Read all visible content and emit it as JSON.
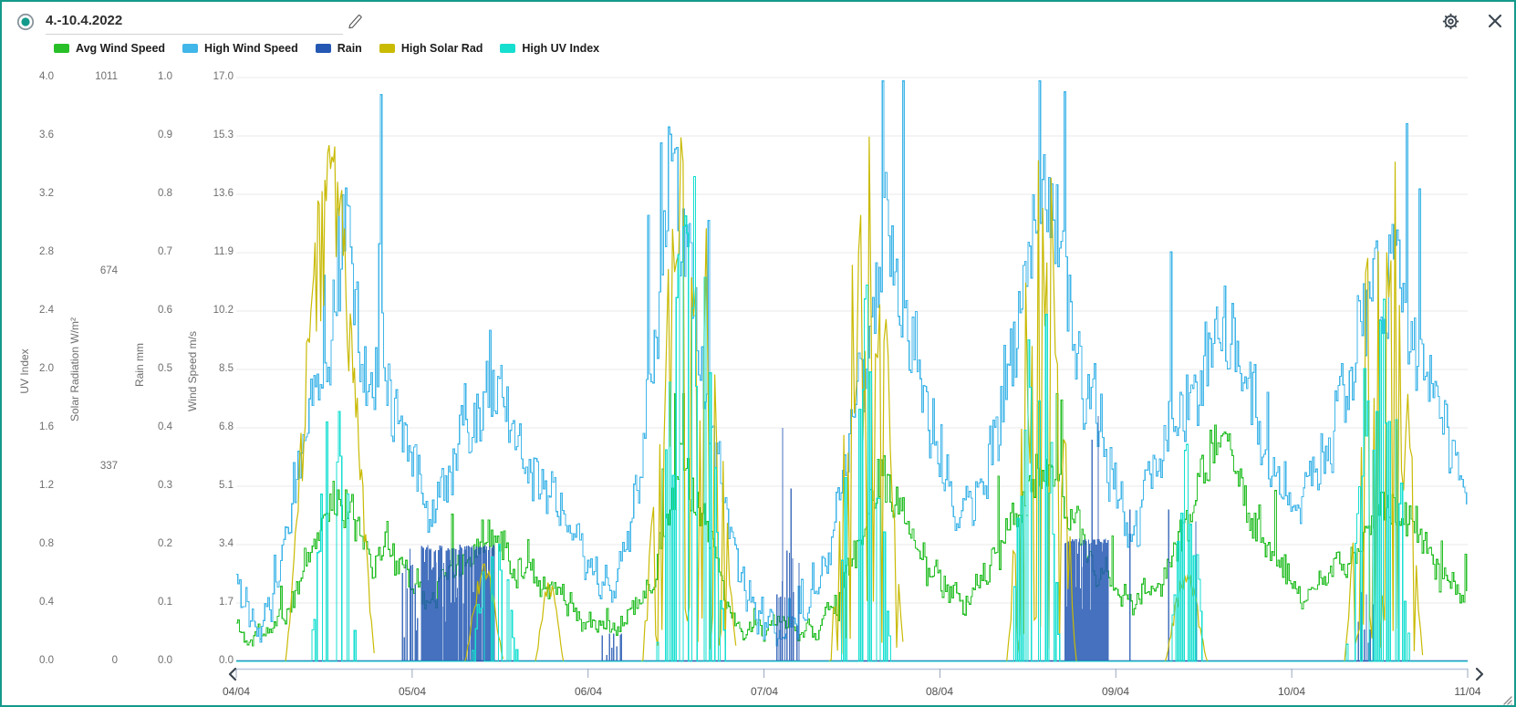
{
  "window": {
    "border_color": "#149a8a",
    "background": "#ffffff"
  },
  "header": {
    "date_range": "4.-10.4.2022"
  },
  "legend": {
    "items": [
      {
        "label": "Avg Wind Speed",
        "color": "#28bf28"
      },
      {
        "label": "High Wind Speed",
        "color": "#41b6e8"
      },
      {
        "label": "Rain",
        "color": "#2458b3"
      },
      {
        "label": "High Solar Rad",
        "color": "#c9ba04"
      },
      {
        "label": "High UV Index",
        "color": "#16dfd0"
      }
    ]
  },
  "chart_data": {
    "type": "line",
    "title": "",
    "x_labels": [
      "04/04",
      "05/04",
      "06/04",
      "07/04",
      "08/04",
      "09/04",
      "10/04",
      "11/04"
    ],
    "x_range_days": [
      0,
      7
    ],
    "grid": "horizontal",
    "legend_position": "top",
    "axes": [
      {
        "id": "uv",
        "title": "UV Index",
        "min": 0,
        "max": 4,
        "ticks": [
          "0.0",
          "0.4",
          "0.8",
          "1.2",
          "1.6",
          "2.0",
          "2.4",
          "2.8",
          "3.2",
          "3.6",
          "4.0"
        ]
      },
      {
        "id": "solar",
        "title": "Solar Radiation W/m²",
        "min": 0,
        "max": 1011,
        "ticks": [
          "0",
          "337",
          "674",
          "1011"
        ]
      },
      {
        "id": "rain",
        "title": "Rain mm",
        "min": 0,
        "max": 1,
        "ticks": [
          "0.0",
          "0.1",
          "0.2",
          "0.3",
          "0.4",
          "0.5",
          "0.6",
          "0.7",
          "0.8",
          "0.9",
          "1.0"
        ]
      },
      {
        "id": "wind",
        "title": "Wind Speed m/s",
        "min": 0,
        "max": 17,
        "ticks": [
          "0.0",
          "1.7",
          "3.4",
          "5.1",
          "6.8",
          "8.5",
          "10.2",
          "11.9",
          "13.6",
          "15.3",
          "17.0"
        ]
      }
    ],
    "series": [
      {
        "name": "Avg Wind Speed",
        "axis": "wind",
        "color": "#28bf28",
        "style": "step",
        "noise": 0.55,
        "cap": 7.8,
        "keyframes": [
          [
            0,
            1.1
          ],
          [
            0.1,
            0.7
          ],
          [
            0.2,
            0.8
          ],
          [
            0.3,
            1.5
          ],
          [
            0.4,
            3
          ],
          [
            0.5,
            4.3
          ],
          [
            0.57,
            4.9
          ],
          [
            0.63,
            4.3
          ],
          [
            0.7,
            3.7
          ],
          [
            0.78,
            3.2
          ],
          [
            0.85,
            3.5
          ],
          [
            0.95,
            2.7
          ],
          [
            1.05,
            2.1
          ],
          [
            1.15,
            2.5
          ],
          [
            1.25,
            2.9
          ],
          [
            1.35,
            3.3
          ],
          [
            1.45,
            3.6
          ],
          [
            1.55,
            3.2
          ],
          [
            1.65,
            2.7
          ],
          [
            1.75,
            2.3
          ],
          [
            1.85,
            1.9
          ],
          [
            1.95,
            1.3
          ],
          [
            2.05,
            1
          ],
          [
            2.15,
            0.9
          ],
          [
            2.25,
            1.3
          ],
          [
            2.35,
            2.6
          ],
          [
            2.45,
            4.2
          ],
          [
            2.52,
            5.3
          ],
          [
            2.6,
            4.8
          ],
          [
            2.7,
            3.2
          ],
          [
            2.8,
            1.5
          ],
          [
            2.9,
            0.9
          ],
          [
            3,
            0.85
          ],
          [
            3.1,
            0.9
          ],
          [
            3.2,
            0.85
          ],
          [
            3.3,
            0.9
          ],
          [
            3.42,
            1.8
          ],
          [
            3.52,
            3.2
          ],
          [
            3.6,
            4.6
          ],
          [
            3.68,
            5.2
          ],
          [
            3.75,
            4.6
          ],
          [
            3.85,
            3.6
          ],
          [
            3.95,
            2.6
          ],
          [
            4.05,
            2.1
          ],
          [
            4.15,
            1.7
          ],
          [
            4.25,
            2.4
          ],
          [
            4.35,
            3.4
          ],
          [
            4.45,
            4.4
          ],
          [
            4.55,
            5.5
          ],
          [
            4.62,
            5.8
          ],
          [
            4.7,
            4.8
          ],
          [
            4.8,
            3.6
          ],
          [
            4.9,
            2.6
          ],
          [
            5,
            1.9
          ],
          [
            5.1,
            1.6
          ],
          [
            5.2,
            2.2
          ],
          [
            5.3,
            3.1
          ],
          [
            5.4,
            4.2
          ],
          [
            5.5,
            5.6
          ],
          [
            5.6,
            6.5
          ],
          [
            5.68,
            5.5
          ],
          [
            5.78,
            4.2
          ],
          [
            5.88,
            3.1
          ],
          [
            5.98,
            2.3
          ],
          [
            6.08,
            1.8
          ],
          [
            6.18,
            2.2
          ],
          [
            6.28,
            2.8
          ],
          [
            6.38,
            3.4
          ],
          [
            6.48,
            4.2
          ],
          [
            6.58,
            4.8
          ],
          [
            6.66,
            4.3
          ],
          [
            6.74,
            3.5
          ],
          [
            6.82,
            2.7
          ],
          [
            6.9,
            2.1
          ],
          [
            7,
            1.7
          ]
        ]
      },
      {
        "name": "High Wind Speed",
        "axis": "wind",
        "color": "#41b6e8",
        "style": "step",
        "noise": 1.0,
        "cap": 16.9,
        "keyframes": [
          [
            0,
            2.6
          ],
          [
            0.1,
            1.8
          ],
          [
            0.2,
            2.2
          ],
          [
            0.3,
            3.8
          ],
          [
            0.4,
            6.5
          ],
          [
            0.5,
            9
          ],
          [
            0.57,
            11.5
          ],
          [
            0.63,
            12.5
          ],
          [
            0.7,
            9
          ],
          [
            0.76,
            7.5
          ],
          [
            0.805,
            8.5
          ],
          [
            0.818,
            16.7
          ],
          [
            0.83,
            9
          ],
          [
            0.9,
            7
          ],
          [
            1,
            5.5
          ],
          [
            1.1,
            4.5
          ],
          [
            1.2,
            5.5
          ],
          [
            1.3,
            7
          ],
          [
            1.4,
            7.5
          ],
          [
            1.5,
            7
          ],
          [
            1.6,
            6
          ],
          [
            1.7,
            5
          ],
          [
            1.8,
            4.5
          ],
          [
            1.9,
            3.5
          ],
          [
            2,
            2.8
          ],
          [
            2.1,
            2.4
          ],
          [
            2.2,
            3
          ],
          [
            2.3,
            5.5
          ],
          [
            2.4,
            9
          ],
          [
            2.47,
            15.3
          ],
          [
            2.55,
            12
          ],
          [
            2.62,
            10
          ],
          [
            2.72,
            6
          ],
          [
            2.82,
            3
          ],
          [
            2.92,
            1.6
          ],
          [
            3,
            1.5
          ],
          [
            3.1,
            1.6
          ],
          [
            3.2,
            1.5
          ],
          [
            3.3,
            1.8
          ],
          [
            3.42,
            4
          ],
          [
            3.52,
            7
          ],
          [
            3.62,
            10.5
          ],
          [
            3.68,
            13.3
          ],
          [
            3.76,
            11
          ],
          [
            3.85,
            9
          ],
          [
            3.95,
            6.5
          ],
          [
            4.05,
            5
          ],
          [
            4.15,
            4
          ],
          [
            4.25,
            5.5
          ],
          [
            4.35,
            7.5
          ],
          [
            4.45,
            10
          ],
          [
            4.55,
            12.5
          ],
          [
            4.62,
            13.6
          ],
          [
            4.7,
            11
          ],
          [
            4.8,
            8.5
          ],
          [
            4.9,
            6.5
          ],
          [
            5,
            4.8
          ],
          [
            5.1,
            4
          ],
          [
            5.2,
            5
          ],
          [
            5.3,
            6.5
          ],
          [
            5.4,
            7.5
          ],
          [
            5.5,
            8.5
          ],
          [
            5.6,
            10.2
          ],
          [
            5.7,
            9
          ],
          [
            5.8,
            7
          ],
          [
            5.9,
            5.5
          ],
          [
            6,
            4.5
          ],
          [
            6.1,
            5
          ],
          [
            6.2,
            6.5
          ],
          [
            6.3,
            8
          ],
          [
            6.4,
            9.5
          ],
          [
            6.5,
            11
          ],
          [
            6.6,
            12.2
          ],
          [
            6.68,
            10
          ],
          [
            6.76,
            8.5
          ],
          [
            6.84,
            7
          ],
          [
            6.92,
            5.5
          ],
          [
            7,
            4.6
          ]
        ]
      },
      {
        "name": "Rain",
        "axis": "rain",
        "color": "#2458b3",
        "style": "spikes",
        "clusters": [
          [
            0.94,
            1.04,
            0.2,
            10,
            0
          ],
          [
            1.05,
            1.47,
            0.2,
            85,
            1
          ],
          [
            2.08,
            2.2,
            0.05,
            8,
            0
          ],
          [
            3.07,
            3.2,
            0.3,
            12,
            0
          ],
          [
            4.71,
            4.96,
            0.21,
            70,
            1
          ],
          [
            6.36,
            6.47,
            0.12,
            8,
            0
          ]
        ],
        "tall_spikes": [
          [
            3.106,
            0.4
          ],
          [
            4.865,
            0.38
          ],
          [
            4.9,
            0.42
          ],
          [
            5.08,
            0.26
          ],
          [
            5.3,
            0.26
          ],
          [
            5.455,
            0.24
          ]
        ]
      },
      {
        "name": "High Solar Rad",
        "axis": "solar",
        "color": "#c9ba04",
        "style": "daycurve",
        "peak_max": 1011,
        "days": [
          [
            0.28,
            0.79,
            905,
            "bell"
          ],
          [
            1.3,
            1.52,
            170,
            "bell"
          ],
          [
            1.7,
            1.86,
            140,
            "bell"
          ],
          [
            2.3,
            2.85,
            1005,
            "spiky"
          ],
          [
            3.37,
            3.8,
            960,
            "spiky"
          ],
          [
            4.38,
            4.78,
            950,
            "spiky"
          ],
          [
            5.28,
            5.52,
            160,
            "bell"
          ],
          [
            6.3,
            6.75,
            985,
            "spiky"
          ]
        ]
      },
      {
        "name": "High UV Index",
        "axis": "uv",
        "color": "#16dfd0",
        "style": "uvspikes",
        "days": [
          [
            0.42,
            0.68,
            2.6
          ],
          [
            1.33,
            1.6,
            1.0
          ],
          [
            2.38,
            2.78,
            3.6
          ],
          [
            3.4,
            3.72,
            2.7
          ],
          [
            4.4,
            4.68,
            3.6
          ],
          [
            5.3,
            5.5,
            1.6
          ],
          [
            6.3,
            6.68,
            2.8
          ]
        ]
      }
    ]
  }
}
